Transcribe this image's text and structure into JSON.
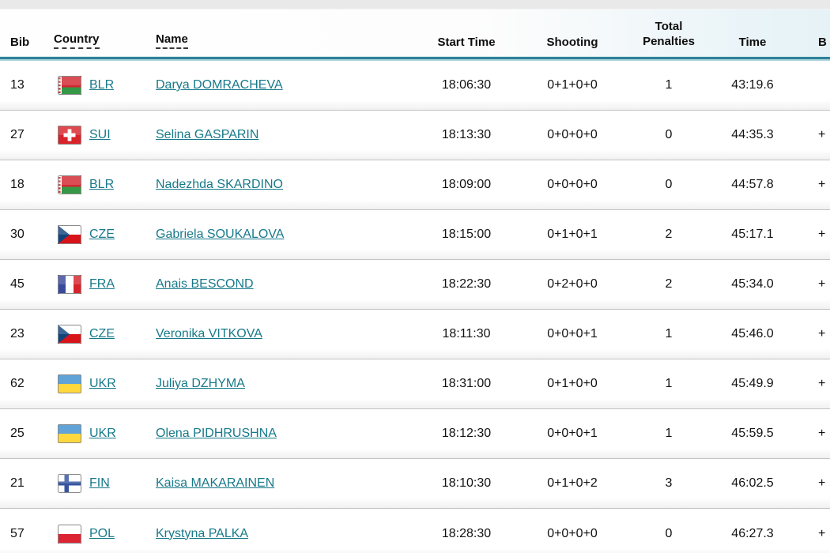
{
  "header": {
    "bib": "Bib",
    "country": "Country",
    "name": "Name",
    "start_time": "Start Time",
    "shooting": "Shooting",
    "penalties_line1": "Total",
    "penalties_line2": "Penalties",
    "time": "Time",
    "behind": "B"
  },
  "colors": {
    "accent_line": "#2f8096",
    "link": "#17798a",
    "top_strip": "#e9e9e9",
    "row_separator": "#c2c2c2"
  },
  "icons": {
    "flag_names": [
      "flag-blr-icon",
      "flag-sui-icon",
      "flag-cze-icon",
      "flag-fra-icon",
      "flag-ukr-icon",
      "flag-fin-icon",
      "flag-pol-icon"
    ]
  },
  "rows": [
    {
      "bib": "13",
      "country": "BLR",
      "name": "Darya DOMRACHEVA",
      "start_time": "18:06:30",
      "shooting": "0+1+0+0",
      "penalties": "1",
      "time": "43:19.6",
      "behind": ""
    },
    {
      "bib": "27",
      "country": "SUI",
      "name": "Selina GASPARIN",
      "start_time": "18:13:30",
      "shooting": "0+0+0+0",
      "penalties": "0",
      "time": "44:35.3",
      "behind": "+"
    },
    {
      "bib": "18",
      "country": "BLR",
      "name": "Nadezhda SKARDINO",
      "start_time": "18:09:00",
      "shooting": "0+0+0+0",
      "penalties": "0",
      "time": "44:57.8",
      "behind": "+"
    },
    {
      "bib": "30",
      "country": "CZE",
      "name": "Gabriela SOUKALOVA",
      "start_time": "18:15:00",
      "shooting": "0+1+0+1",
      "penalties": "2",
      "time": "45:17.1",
      "behind": "+"
    },
    {
      "bib": "45",
      "country": "FRA",
      "name": "Anais BESCOND",
      "start_time": "18:22:30",
      "shooting": "0+2+0+0",
      "penalties": "2",
      "time": "45:34.0",
      "behind": "+"
    },
    {
      "bib": "23",
      "country": "CZE",
      "name": "Veronika VITKOVA",
      "start_time": "18:11:30",
      "shooting": "0+0+0+1",
      "penalties": "1",
      "time": "45:46.0",
      "behind": "+"
    },
    {
      "bib": "62",
      "country": "UKR",
      "name": "Juliya DZHYMA",
      "start_time": "18:31:00",
      "shooting": "0+1+0+0",
      "penalties": "1",
      "time": "45:49.9",
      "behind": "+"
    },
    {
      "bib": "25",
      "country": "UKR",
      "name": "Olena PIDHRUSHNA",
      "start_time": "18:12:30",
      "shooting": "0+0+0+1",
      "penalties": "1",
      "time": "45:59.5",
      "behind": "+"
    },
    {
      "bib": "21",
      "country": "FIN",
      "name": "Kaisa MAKARAINEN",
      "start_time": "18:10:30",
      "shooting": "0+1+0+2",
      "penalties": "3",
      "time": "46:02.5",
      "behind": "+"
    },
    {
      "bib": "57",
      "country": "POL",
      "name": "Krystyna PALKA",
      "start_time": "18:28:30",
      "shooting": "0+0+0+0",
      "penalties": "0",
      "time": "46:27.3",
      "behind": "+"
    }
  ]
}
